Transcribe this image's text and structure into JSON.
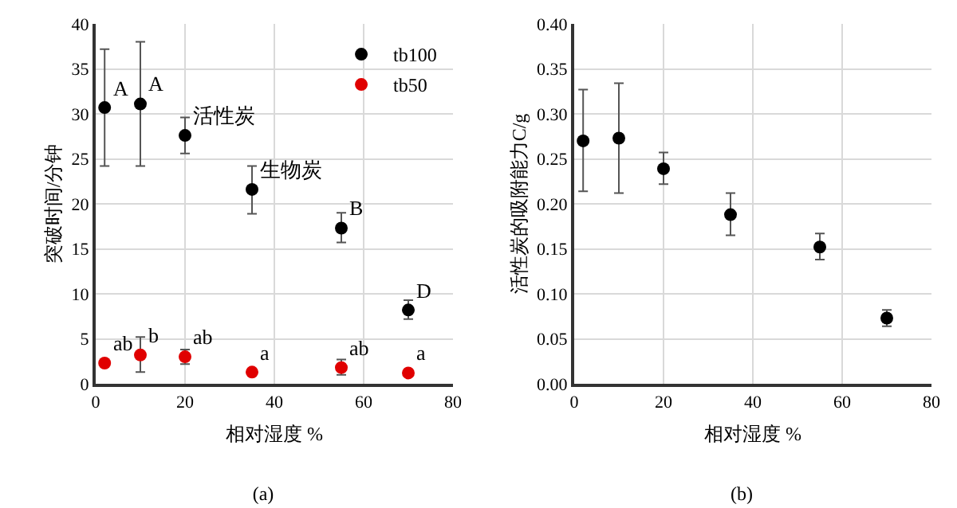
{
  "chart_data": [
    {
      "type": "scatter",
      "title": "(a)",
      "xlabel": "相对湿度 %",
      "ylabel": "突破时间/分钟",
      "x": [
        2,
        10,
        20,
        35,
        55,
        70
      ],
      "xlim": [
        0,
        80
      ],
      "xticks": [
        0,
        20,
        40,
        60,
        80
      ],
      "ylim": [
        0,
        40
      ],
      "yticks": [
        0,
        5,
        10,
        15,
        20,
        25,
        30,
        35,
        40
      ],
      "grid": true,
      "legend": "top right",
      "marker": "circle",
      "series": [
        {
          "name": "tb100",
          "color": "#000000",
          "values": [
            30.7,
            31.1,
            27.6,
            21.6,
            17.3,
            8.2
          ],
          "errors": [
            [
              24.2,
              37.2
            ],
            [
              24.2,
              38
            ],
            [
              25.6,
              29.6
            ],
            [
              18.9,
              24.2
            ],
            [
              15.7,
              19
            ],
            [
              7.2,
              9.3
            ]
          ]
        },
        {
          "name": "tb50",
          "color": "#e00000",
          "values": [
            2.3,
            3.2,
            3.0,
            1.3,
            1.8,
            1.2
          ],
          "errors": [
            null,
            [
              1.3,
              5.2
            ],
            [
              2.2,
              3.8
            ],
            null,
            [
              1.0,
              2.7
            ],
            null
          ]
        }
      ],
      "annotations": [
        {
          "text": "A",
          "x": 2,
          "y": 30.7
        },
        {
          "text": "A",
          "x": 10,
          "y": 31.1
        },
        {
          "text": "活性炭",
          "x": 20,
          "y": 27.6
        },
        {
          "text": "生物炭",
          "x": 35,
          "y": 21.6
        },
        {
          "text": "B",
          "x": 55,
          "y": 17.3
        },
        {
          "text": "D",
          "x": 70,
          "y": 8.2
        },
        {
          "text": "ab",
          "x": 2,
          "y": 2.3
        },
        {
          "text": "b",
          "x": 10,
          "y": 3.2
        },
        {
          "text": "ab",
          "x": 20,
          "y": 3.0
        },
        {
          "text": "a",
          "x": 35,
          "y": 1.3
        },
        {
          "text": "ab",
          "x": 55,
          "y": 1.8
        },
        {
          "text": "a",
          "x": 70,
          "y": 1.2
        }
      ]
    },
    {
      "type": "scatter",
      "title": "(b)",
      "xlabel": "相对湿度 %",
      "ylabel": "活性炭的吸附能力C/g",
      "x": [
        2,
        10,
        20,
        35,
        55,
        70
      ],
      "xlim": [
        0,
        80
      ],
      "xticks": [
        0,
        20,
        40,
        60,
        80
      ],
      "ylim": [
        0,
        0.4
      ],
      "yticks": [
        {
          "value": 0,
          "label": "0.00"
        },
        {
          "value": 0.05,
          "label": "0.05"
        },
        {
          "value": 0.1,
          "label": "0.10"
        },
        {
          "value": 0.15,
          "label": "0.15"
        },
        {
          "value": 0.2,
          "label": "0.20"
        },
        {
          "value": 0.25,
          "label": "0.25"
        },
        {
          "value": 0.3,
          "label": "0.30"
        },
        {
          "value": 0.35,
          "label": "0.35"
        },
        {
          "value": 0.4,
          "label": "0.40"
        }
      ],
      "grid": true,
      "marker": "circle",
      "series": [
        {
          "color": "#000000",
          "values": [
            0.27,
            0.273,
            0.239,
            0.188,
            0.152,
            0.073
          ],
          "errors": [
            [
              0.214,
              0.327
            ],
            [
              0.212,
              0.334
            ],
            [
              0.222,
              0.257
            ],
            [
              0.165,
              0.212
            ],
            [
              0.138,
              0.167
            ],
            [
              0.064,
              0.082
            ]
          ]
        }
      ]
    }
  ]
}
